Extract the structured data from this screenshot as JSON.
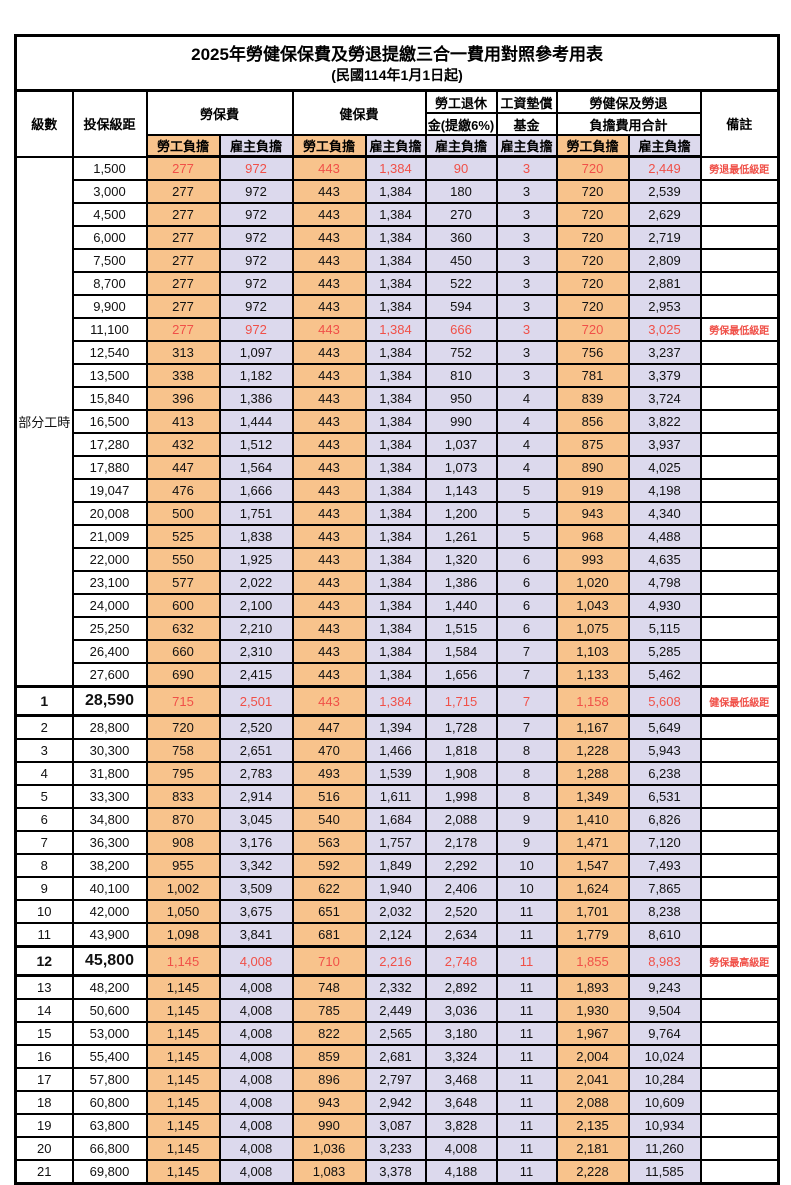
{
  "title": "2025年勞健保保費及勞退提繳三合一費用對照參考用表",
  "subtitle": "(民國114年1月1日起)",
  "header": {
    "level": "級數",
    "bracket": "投保級距",
    "labor_fee": "勞保費",
    "health_fee": "健保費",
    "pension_line1": "勞工退休",
    "pension_line2": "金(提繳6%)",
    "wage_fund_line1": "工資墊償",
    "wage_fund_line2": "基金",
    "total_line1": "勞健保及勞退",
    "total_line2": "負擔費用合計",
    "note": "備註",
    "employee": "勞工負擔",
    "employer": "雇主負擔"
  },
  "part_time_label": "部分工時",
  "part_time_rowspan": 23,
  "colors": {
    "employee_bg": "#f8c38c",
    "employer_bg": "#dcd9ed",
    "highlight_text": "#f05048",
    "border": "#000000"
  },
  "rows": [
    {
      "level": "",
      "bracket": "1,500",
      "v": [
        "277",
        "972",
        "443",
        "1,384",
        "90",
        "3",
        "720",
        "2,449"
      ],
      "note": "勞退最低級距",
      "hl": true,
      "em": false
    },
    {
      "level": "",
      "bracket": "3,000",
      "v": [
        "277",
        "972",
        "443",
        "1,384",
        "180",
        "3",
        "720",
        "2,539"
      ],
      "note": "",
      "hl": false,
      "em": false
    },
    {
      "level": "",
      "bracket": "4,500",
      "v": [
        "277",
        "972",
        "443",
        "1,384",
        "270",
        "3",
        "720",
        "2,629"
      ],
      "note": "",
      "hl": false,
      "em": false
    },
    {
      "level": "",
      "bracket": "6,000",
      "v": [
        "277",
        "972",
        "443",
        "1,384",
        "360",
        "3",
        "720",
        "2,719"
      ],
      "note": "",
      "hl": false,
      "em": false
    },
    {
      "level": "",
      "bracket": "7,500",
      "v": [
        "277",
        "972",
        "443",
        "1,384",
        "450",
        "3",
        "720",
        "2,809"
      ],
      "note": "",
      "hl": false,
      "em": false
    },
    {
      "level": "",
      "bracket": "8,700",
      "v": [
        "277",
        "972",
        "443",
        "1,384",
        "522",
        "3",
        "720",
        "2,881"
      ],
      "note": "",
      "hl": false,
      "em": false
    },
    {
      "level": "",
      "bracket": "9,900",
      "v": [
        "277",
        "972",
        "443",
        "1,384",
        "594",
        "3",
        "720",
        "2,953"
      ],
      "note": "",
      "hl": false,
      "em": false
    },
    {
      "level": "",
      "bracket": "11,100",
      "v": [
        "277",
        "972",
        "443",
        "1,384",
        "666",
        "3",
        "720",
        "3,025"
      ],
      "note": "勞保最低級距",
      "hl": true,
      "em": false
    },
    {
      "level": "",
      "bracket": "12,540",
      "v": [
        "313",
        "1,097",
        "443",
        "1,384",
        "752",
        "3",
        "756",
        "3,237"
      ],
      "note": "",
      "hl": false,
      "em": false
    },
    {
      "level": "",
      "bracket": "13,500",
      "v": [
        "338",
        "1,182",
        "443",
        "1,384",
        "810",
        "3",
        "781",
        "3,379"
      ],
      "note": "",
      "hl": false,
      "em": false
    },
    {
      "level": "",
      "bracket": "15,840",
      "v": [
        "396",
        "1,386",
        "443",
        "1,384",
        "950",
        "4",
        "839",
        "3,724"
      ],
      "note": "",
      "hl": false,
      "em": false
    },
    {
      "level": "",
      "bracket": "16,500",
      "v": [
        "413",
        "1,444",
        "443",
        "1,384",
        "990",
        "4",
        "856",
        "3,822"
      ],
      "note": "",
      "hl": false,
      "em": false
    },
    {
      "level": "",
      "bracket": "17,280",
      "v": [
        "432",
        "1,512",
        "443",
        "1,384",
        "1,037",
        "4",
        "875",
        "3,937"
      ],
      "note": "",
      "hl": false,
      "em": false
    },
    {
      "level": "",
      "bracket": "17,880",
      "v": [
        "447",
        "1,564",
        "443",
        "1,384",
        "1,073",
        "4",
        "890",
        "4,025"
      ],
      "note": "",
      "hl": false,
      "em": false
    },
    {
      "level": "",
      "bracket": "19,047",
      "v": [
        "476",
        "1,666",
        "443",
        "1,384",
        "1,143",
        "5",
        "919",
        "4,198"
      ],
      "note": "",
      "hl": false,
      "em": false
    },
    {
      "level": "",
      "bracket": "20,008",
      "v": [
        "500",
        "1,751",
        "443",
        "1,384",
        "1,200",
        "5",
        "943",
        "4,340"
      ],
      "note": "",
      "hl": false,
      "em": false
    },
    {
      "level": "",
      "bracket": "21,009",
      "v": [
        "525",
        "1,838",
        "443",
        "1,384",
        "1,261",
        "5",
        "968",
        "4,488"
      ],
      "note": "",
      "hl": false,
      "em": false
    },
    {
      "level": "",
      "bracket": "22,000",
      "v": [
        "550",
        "1,925",
        "443",
        "1,384",
        "1,320",
        "6",
        "993",
        "4,635"
      ],
      "note": "",
      "hl": false,
      "em": false
    },
    {
      "level": "",
      "bracket": "23,100",
      "v": [
        "577",
        "2,022",
        "443",
        "1,384",
        "1,386",
        "6",
        "1,020",
        "4,798"
      ],
      "note": "",
      "hl": false,
      "em": false
    },
    {
      "level": "",
      "bracket": "24,000",
      "v": [
        "600",
        "2,100",
        "443",
        "1,384",
        "1,440",
        "6",
        "1,043",
        "4,930"
      ],
      "note": "",
      "hl": false,
      "em": false
    },
    {
      "level": "",
      "bracket": "25,250",
      "v": [
        "632",
        "2,210",
        "443",
        "1,384",
        "1,515",
        "6",
        "1,075",
        "5,115"
      ],
      "note": "",
      "hl": false,
      "em": false
    },
    {
      "level": "",
      "bracket": "26,400",
      "v": [
        "660",
        "2,310",
        "443",
        "1,384",
        "1,584",
        "7",
        "1,103",
        "5,285"
      ],
      "note": "",
      "hl": false,
      "em": false
    },
    {
      "level": "",
      "bracket": "27,600",
      "v": [
        "690",
        "2,415",
        "443",
        "1,384",
        "1,656",
        "7",
        "1,133",
        "5,462"
      ],
      "note": "",
      "hl": false,
      "em": false
    },
    {
      "level": "1",
      "bracket": "28,590",
      "v": [
        "715",
        "2,501",
        "443",
        "1,384",
        "1,715",
        "7",
        "1,158",
        "5,608"
      ],
      "note": "健保最低級距",
      "hl": true,
      "em": true,
      "sec_top": true,
      "sec_bottom": true
    },
    {
      "level": "2",
      "bracket": "28,800",
      "v": [
        "720",
        "2,520",
        "447",
        "1,394",
        "1,728",
        "7",
        "1,167",
        "5,649"
      ],
      "note": "",
      "hl": false,
      "em": false
    },
    {
      "level": "3",
      "bracket": "30,300",
      "v": [
        "758",
        "2,651",
        "470",
        "1,466",
        "1,818",
        "8",
        "1,228",
        "5,943"
      ],
      "note": "",
      "hl": false,
      "em": false
    },
    {
      "level": "4",
      "bracket": "31,800",
      "v": [
        "795",
        "2,783",
        "493",
        "1,539",
        "1,908",
        "8",
        "1,288",
        "6,238"
      ],
      "note": "",
      "hl": false,
      "em": false
    },
    {
      "level": "5",
      "bracket": "33,300",
      "v": [
        "833",
        "2,914",
        "516",
        "1,611",
        "1,998",
        "8",
        "1,349",
        "6,531"
      ],
      "note": "",
      "hl": false,
      "em": false
    },
    {
      "level": "6",
      "bracket": "34,800",
      "v": [
        "870",
        "3,045",
        "540",
        "1,684",
        "2,088",
        "9",
        "1,410",
        "6,826"
      ],
      "note": "",
      "hl": false,
      "em": false
    },
    {
      "level": "7",
      "bracket": "36,300",
      "v": [
        "908",
        "3,176",
        "563",
        "1,757",
        "2,178",
        "9",
        "1,471",
        "7,120"
      ],
      "note": "",
      "hl": false,
      "em": false
    },
    {
      "level": "8",
      "bracket": "38,200",
      "v": [
        "955",
        "3,342",
        "592",
        "1,849",
        "2,292",
        "10",
        "1,547",
        "7,493"
      ],
      "note": "",
      "hl": false,
      "em": false
    },
    {
      "level": "9",
      "bracket": "40,100",
      "v": [
        "1,002",
        "3,509",
        "622",
        "1,940",
        "2,406",
        "10",
        "1,624",
        "7,865"
      ],
      "note": "",
      "hl": false,
      "em": false
    },
    {
      "level": "10",
      "bracket": "42,000",
      "v": [
        "1,050",
        "3,675",
        "651",
        "2,032",
        "2,520",
        "11",
        "1,701",
        "8,238"
      ],
      "note": "",
      "hl": false,
      "em": false
    },
    {
      "level": "11",
      "bracket": "43,900",
      "v": [
        "1,098",
        "3,841",
        "681",
        "2,124",
        "2,634",
        "11",
        "1,779",
        "8,610"
      ],
      "note": "",
      "hl": false,
      "em": false
    },
    {
      "level": "12",
      "bracket": "45,800",
      "v": [
        "1,145",
        "4,008",
        "710",
        "2,216",
        "2,748",
        "11",
        "1,855",
        "8,983"
      ],
      "note": "勞保最高級距",
      "hl": true,
      "em": true,
      "sec_top": true,
      "sec_bottom": true
    },
    {
      "level": "13",
      "bracket": "48,200",
      "v": [
        "1,145",
        "4,008",
        "748",
        "2,332",
        "2,892",
        "11",
        "1,893",
        "9,243"
      ],
      "note": "",
      "hl": false,
      "em": false
    },
    {
      "level": "14",
      "bracket": "50,600",
      "v": [
        "1,145",
        "4,008",
        "785",
        "2,449",
        "3,036",
        "11",
        "1,930",
        "9,504"
      ],
      "note": "",
      "hl": false,
      "em": false
    },
    {
      "level": "15",
      "bracket": "53,000",
      "v": [
        "1,145",
        "4,008",
        "822",
        "2,565",
        "3,180",
        "11",
        "1,967",
        "9,764"
      ],
      "note": "",
      "hl": false,
      "em": false
    },
    {
      "level": "16",
      "bracket": "55,400",
      "v": [
        "1,145",
        "4,008",
        "859",
        "2,681",
        "3,324",
        "11",
        "2,004",
        "10,024"
      ],
      "note": "",
      "hl": false,
      "em": false
    },
    {
      "level": "17",
      "bracket": "57,800",
      "v": [
        "1,145",
        "4,008",
        "896",
        "2,797",
        "3,468",
        "11",
        "2,041",
        "10,284"
      ],
      "note": "",
      "hl": false,
      "em": false
    },
    {
      "level": "18",
      "bracket": "60,800",
      "v": [
        "1,145",
        "4,008",
        "943",
        "2,942",
        "3,648",
        "11",
        "2,088",
        "10,609"
      ],
      "note": "",
      "hl": false,
      "em": false
    },
    {
      "level": "19",
      "bracket": "63,800",
      "v": [
        "1,145",
        "4,008",
        "990",
        "3,087",
        "3,828",
        "11",
        "2,135",
        "10,934"
      ],
      "note": "",
      "hl": false,
      "em": false
    },
    {
      "level": "20",
      "bracket": "66,800",
      "v": [
        "1,145",
        "4,008",
        "1,036",
        "3,233",
        "4,008",
        "11",
        "2,181",
        "11,260"
      ],
      "note": "",
      "hl": false,
      "em": false
    },
    {
      "level": "21",
      "bracket": "69,800",
      "v": [
        "1,145",
        "4,008",
        "1,083",
        "3,378",
        "4,188",
        "11",
        "2,228",
        "11,585"
      ],
      "note": "",
      "hl": false,
      "em": false
    }
  ]
}
